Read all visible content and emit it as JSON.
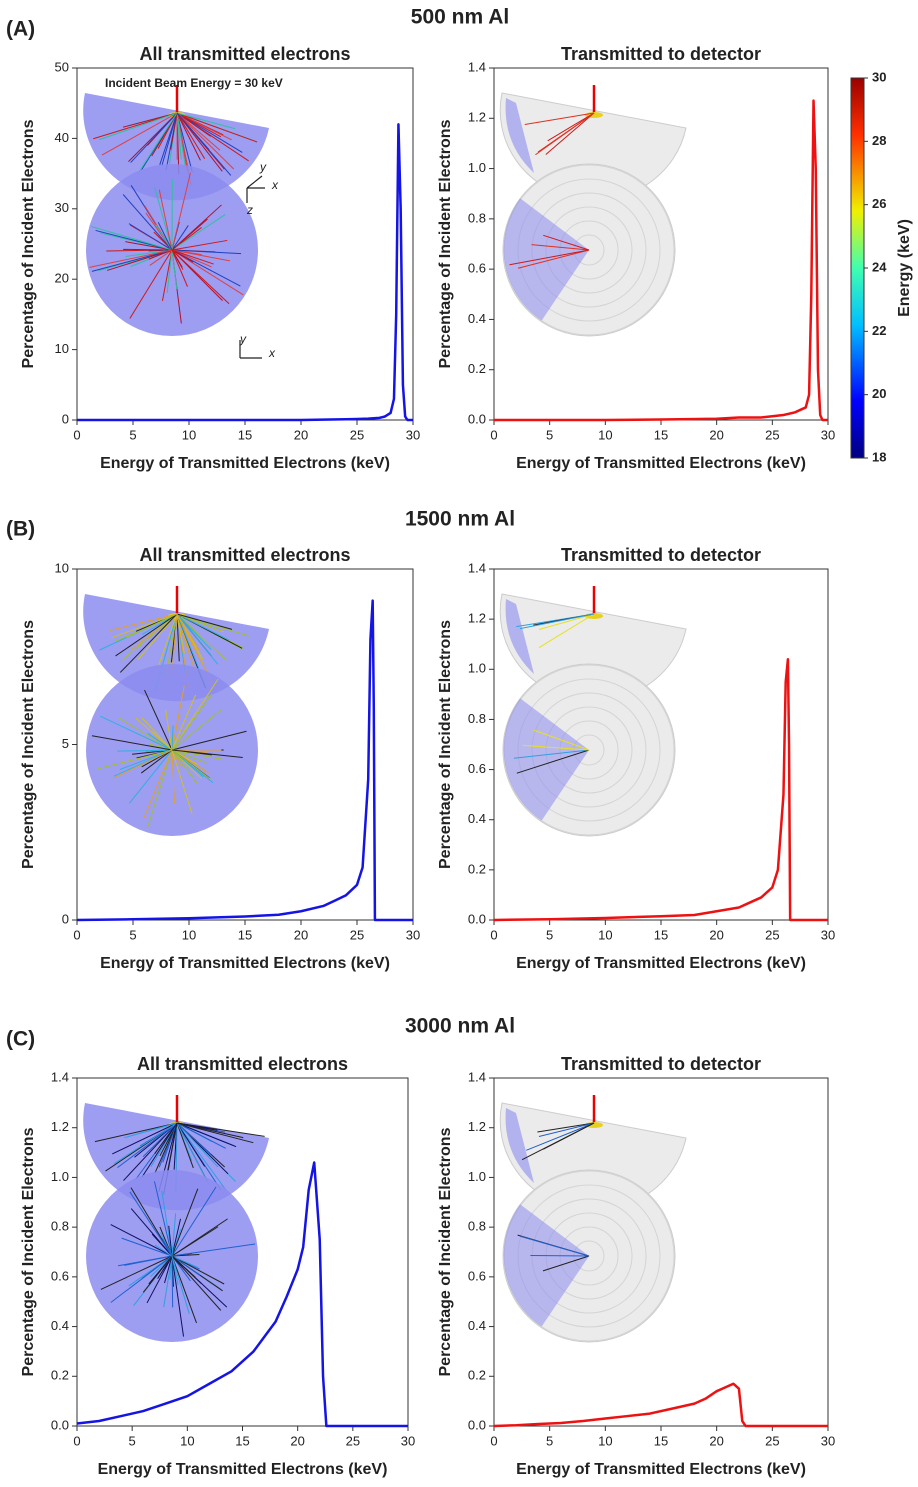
{
  "sections": [
    {
      "label": "(A)",
      "title": "500 nm Al"
    },
    {
      "label": "(B)",
      "title": "1500 nm Al"
    },
    {
      "label": "(C)",
      "title": "3000 nm Al"
    }
  ],
  "colorbar": {
    "label": "Energy (keV)",
    "lim": [
      18,
      30
    ],
    "ticks": [
      18,
      20,
      22,
      24,
      26,
      28,
      30
    ]
  },
  "chart_data": [
    {
      "type": "line",
      "title": "All transmitted electrons",
      "xlabel": "Energy of Transmitted Electrons (keV)",
      "ylabel": "Percentage of Incident Electrons",
      "annotation": "Incident Beam Energy = 30 keV",
      "inset_axis_labels": [
        "y",
        "x",
        "z",
        "y",
        "x"
      ],
      "xlim": [
        0,
        30
      ],
      "xticks": [
        0,
        5,
        10,
        15,
        20,
        25,
        30
      ],
      "ylim": [
        0,
        50
      ],
      "yticks": [
        0,
        10,
        20,
        30,
        40,
        50
      ],
      "color": "#1414e6",
      "x": [
        0,
        5,
        10,
        15,
        20,
        22,
        24,
        25,
        26,
        27,
        27.5,
        28,
        28.3,
        28.5,
        28.7,
        28.9,
        29.1,
        29.3,
        29.5,
        30
      ],
      "values": [
        0,
        0,
        0,
        0,
        0,
        0.05,
        0.1,
        0.15,
        0.2,
        0.3,
        0.5,
        1,
        3,
        15,
        42,
        30,
        5,
        0.5,
        0,
        0
      ]
    },
    {
      "type": "line",
      "title": "Transmitted to detector",
      "xlabel": "Energy of Transmitted Electrons (keV)",
      "ylabel": "Percentage of Incident Electrons",
      "xlim": [
        0,
        30
      ],
      "xticks": [
        0,
        5,
        10,
        15,
        20,
        25,
        30
      ],
      "ylim": [
        0,
        1.4
      ],
      "yticks": [
        {
          "value": 0,
          "label": "0.0"
        },
        0.2,
        0.4,
        0.6,
        0.8,
        {
          "value": 1,
          "label": "1.0"
        },
        1.2,
        1.4
      ],
      "color": "#ee1111",
      "x": [
        0,
        5,
        10,
        15,
        20,
        22,
        24,
        25,
        26,
        27,
        27.5,
        28,
        28.3,
        28.5,
        28.7,
        28.9,
        29.1,
        29.3,
        29.5,
        30
      ],
      "values": [
        0,
        0,
        0,
        0.002,
        0.005,
        0.01,
        0.01,
        0.015,
        0.02,
        0.03,
        0.04,
        0.05,
        0.1,
        0.5,
        1.27,
        1.0,
        0.2,
        0.02,
        0,
        0
      ]
    },
    {
      "type": "line",
      "title": "All transmitted electrons",
      "xlabel": "Energy of Transmitted Electrons (keV)",
      "ylabel": "Percentage of Incident Electrons",
      "xlim": [
        0,
        30
      ],
      "xticks": [
        0,
        5,
        10,
        15,
        20,
        25,
        30
      ],
      "ylim": [
        0,
        10
      ],
      "yticks": [
        0,
        5,
        10
      ],
      "color": "#1414e6",
      "x": [
        0,
        5,
        10,
        15,
        18,
        20,
        22,
        23,
        24,
        25,
        25.5,
        26,
        26.2,
        26.4,
        26.5,
        26.6,
        27,
        30
      ],
      "values": [
        0,
        0.02,
        0.05,
        0.1,
        0.15,
        0.25,
        0.4,
        0.55,
        0.7,
        1.0,
        1.5,
        4,
        8,
        9.1,
        6,
        0,
        0,
        0
      ]
    },
    {
      "type": "line",
      "title": "Transmitted to detector",
      "xlabel": "Energy of Transmitted Electrons (keV)",
      "ylabel": "Percentage of Incident Electrons",
      "xlim": [
        0,
        30
      ],
      "xticks": [
        0,
        5,
        10,
        15,
        20,
        25,
        30
      ],
      "ylim": [
        0,
        1.4
      ],
      "yticks": [
        {
          "value": 0,
          "label": "0.0"
        },
        0.2,
        0.4,
        0.6,
        0.8,
        {
          "value": 1,
          "label": "1.0"
        },
        1.2,
        1.4
      ],
      "color": "#ee1111",
      "x": [
        0,
        5,
        10,
        15,
        18,
        20,
        22,
        23,
        24,
        25,
        25.5,
        26,
        26.2,
        26.4,
        26.5,
        26.6,
        27,
        30
      ],
      "values": [
        0,
        0.003,
        0.008,
        0.015,
        0.02,
        0.035,
        0.05,
        0.07,
        0.09,
        0.13,
        0.2,
        0.5,
        0.95,
        1.04,
        0.7,
        0,
        0,
        0
      ]
    },
    {
      "type": "line",
      "title": "All transmitted electrons",
      "xlabel": "Energy of Transmitted Electrons (keV)",
      "ylabel": "Percentage of Incident Electrons",
      "xlim": [
        0,
        30
      ],
      "xticks": [
        0,
        5,
        10,
        15,
        20,
        25,
        30
      ],
      "ylim": [
        0,
        1.4
      ],
      "yticks": [
        {
          "value": 0,
          "label": "0.0"
        },
        0.2,
        0.4,
        0.6,
        0.8,
        {
          "value": 1,
          "label": "1.0"
        },
        1.2,
        1.4
      ],
      "color": "#1414e6",
      "x": [
        0,
        2,
        4,
        6,
        8,
        10,
        12,
        14,
        16,
        17,
        18,
        19,
        20,
        20.5,
        21,
        21.5,
        22,
        22.3,
        22.6,
        25,
        30
      ],
      "values": [
        0.01,
        0.02,
        0.04,
        0.06,
        0.09,
        0.12,
        0.17,
        0.22,
        0.3,
        0.36,
        0.42,
        0.52,
        0.63,
        0.72,
        0.95,
        1.06,
        0.75,
        0.2,
        0,
        0,
        0
      ]
    },
    {
      "type": "line",
      "title": "Transmitted to detector",
      "xlabel": "Energy of Transmitted Electrons (keV)",
      "ylabel": "Percentage of Incident Electrons",
      "xlim": [
        0,
        30
      ],
      "xticks": [
        0,
        5,
        10,
        15,
        20,
        25,
        30
      ],
      "ylim": [
        0,
        1.4
      ],
      "yticks": [
        {
          "value": 0,
          "label": "0.0"
        },
        0.2,
        0.4,
        0.6,
        0.8,
        {
          "value": 1,
          "label": "1.0"
        },
        1.2,
        1.4
      ],
      "color": "#ee1111",
      "x": [
        0,
        2,
        4,
        6,
        8,
        10,
        12,
        14,
        16,
        17,
        18,
        19,
        20,
        20.5,
        21,
        21.5,
        22,
        22.3,
        22.6,
        25,
        30
      ],
      "values": [
        0,
        0.003,
        0.008,
        0.012,
        0.02,
        0.03,
        0.04,
        0.05,
        0.07,
        0.08,
        0.09,
        0.11,
        0.14,
        0.15,
        0.16,
        0.17,
        0.15,
        0.02,
        0,
        0,
        0
      ]
    }
  ]
}
